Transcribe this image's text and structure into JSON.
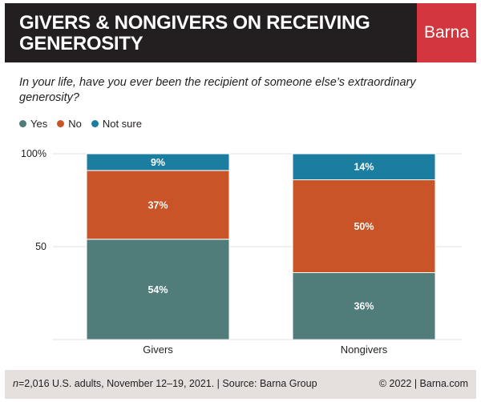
{
  "header": {
    "title": "GIVERS & NONGIVERS ON RECEIVING GENEROSITY",
    "brand": "Barna"
  },
  "question": "In your life, have you ever been the recipient of someone else’s extraordinary generosity?",
  "legend": [
    {
      "label": "Yes",
      "color": "#507c7a"
    },
    {
      "label": "No",
      "color": "#c85428"
    },
    {
      "label": "Not sure",
      "color": "#1b7da0"
    }
  ],
  "chart_data": {
    "type": "bar",
    "stacked": true,
    "categories": [
      "Givers",
      "Nongivers"
    ],
    "series": [
      {
        "name": "Yes",
        "values": [
          54,
          36
        ],
        "color": "#507c7a"
      },
      {
        "name": "No",
        "values": [
          37,
          50
        ],
        "color": "#c85428"
      },
      {
        "name": "Not sure",
        "values": [
          9,
          14
        ],
        "color": "#1b7da0"
      }
    ],
    "value_labels": [
      [
        "54%",
        "36%"
      ],
      [
        "37%",
        "50%"
      ],
      [
        "9%",
        "14%"
      ]
    ],
    "yticks": [
      "100%",
      "50"
    ],
    "ytick_values": [
      100,
      50
    ],
    "ylim": [
      0,
      100
    ],
    "grid": true
  },
  "footer": {
    "n_label": "n",
    "sample": "=2,016 U.S. adults, November 12–19, 2021. | Source: Barna Group",
    "copyright": "© 2022 |  Barna.com"
  }
}
